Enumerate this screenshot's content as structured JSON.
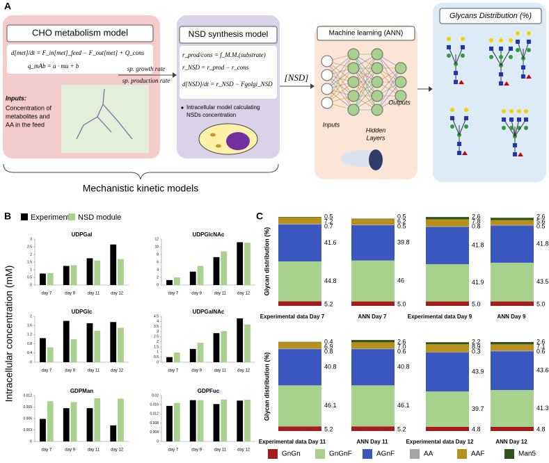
{
  "panel_a": {
    "label": "A",
    "cho": {
      "title": "CHO metabolism model",
      "equations": [
        "d[met]/dt = F_in[met]_feed − F_out[met] + Q_cons",
        "q_mAb = a · mu + b"
      ],
      "inputs_title": "Inputs:",
      "inputs_text": [
        "Concentration of",
        "metabolites and",
        "AA in the feed"
      ]
    },
    "arrow1": {
      "top": "sp. growth rate",
      "bottom": "sp. production rate"
    },
    "nsd": {
      "title": "NSD synthesis model",
      "equations": [
        "r_prod/cons = f_M.M.(substrate)",
        "r_NSD = r_prod − r_cons",
        "d[NSD]/dt = r_NSD − Fgolgi_NSD"
      ],
      "bullet": [
        "Intracellular model calculating",
        "NSDs concentration"
      ]
    },
    "arrow2": "[NSD]",
    "ann": {
      "title": "Machine learning (ANN)",
      "inputs": "Inputs",
      "hidden": [
        "Hidden",
        "Layers"
      ],
      "outputs": "Outputs"
    },
    "glycans": {
      "title": "Glycans Distribution (%)"
    },
    "brace_label": "Mechanistic kinetic models"
  },
  "panel_b_label": "B",
  "panel_c_label": "C",
  "chart_data": [
    {
      "type": "bar",
      "ylabel": "Intracellular concentration (mM)",
      "categories": [
        "day 7",
        "day 9",
        "day 11",
        "day 12"
      ],
      "legend": [
        {
          "name": "Experiment",
          "color": "#000000"
        },
        {
          "name": "NSD module",
          "color": "#a9d18e"
        }
      ],
      "panels": [
        {
          "title": "UDPGal",
          "ylim": [
            0,
            3
          ],
          "yticks": [
            0,
            0.5,
            1,
            1.5,
            2,
            2.5,
            3
          ],
          "series": [
            {
              "values": [
                0.75,
                1.25,
                1.75,
                2.65
              ]
            },
            {
              "values": [
                0.78,
                1.3,
                1.6,
                1.7
              ]
            }
          ]
        },
        {
          "title": "UDPGlcNAc",
          "ylim": [
            0,
            12
          ],
          "yticks": [
            0,
            2,
            4,
            6,
            8,
            10,
            12
          ],
          "series": [
            {
              "values": [
                1.3,
                3.5,
                7.3,
                11.2
              ]
            },
            {
              "values": [
                2,
                5,
                8.8,
                11.1
              ]
            }
          ]
        },
        {
          "title": "UDPGlc",
          "ylim": [
            0,
            2
          ],
          "yticks": [
            0,
            0.4,
            0.8,
            1.2,
            1.6,
            2
          ],
          "series": [
            {
              "values": [
                1.05,
                1.8,
                1.7,
                1.75
              ]
            },
            {
              "values": [
                0.65,
                1,
                1.37,
                1.5
              ]
            }
          ]
        },
        {
          "title": "UDPGalNAc",
          "ylim": [
            0,
            4.5
          ],
          "yticks": [
            0,
            0.5,
            1,
            1.5,
            2,
            2.5,
            3,
            3.5,
            4,
            4.5
          ],
          "series": [
            {
              "values": [
                0.5,
                1.3,
                2.85,
                4.3
              ]
            },
            {
              "values": [
                0.95,
                1.9,
                3.05,
                3.7
              ]
            }
          ]
        },
        {
          "title": "GDPMan",
          "ylim": [
            0,
            0.012
          ],
          "yticks": [
            0,
            0.003,
            0.006,
            0.009,
            0.012
          ],
          "series": [
            {
              "values": [
                0.0059,
                0.0087,
                0.0087,
                0.0042
              ]
            },
            {
              "values": [
                0.0105,
                0.0103,
                0.0113,
                0.0112
              ]
            }
          ]
        },
        {
          "title": "GDPFuc",
          "ylim": [
            0,
            0.02
          ],
          "yticks": [
            0,
            0.004,
            0.008,
            0.012,
            0.016,
            0.02
          ],
          "series": [
            {
              "values": [
                0.0155,
                0.018,
                0.0163,
                0.0178
              ]
            },
            {
              "values": [
                0.0168,
                0.018,
                0.0183,
                0.0182
              ]
            }
          ]
        }
      ]
    },
    {
      "type": "stacked_bar",
      "ylabel": "Glycan distribution (%)",
      "ylim": [
        0,
        100
      ],
      "categories": [
        "Experimental data Day 7",
        "ANN Day 7",
        "Experimental data Day 9",
        "ANN Day 9",
        "Experimental data Day 11",
        "ANN Day 11",
        "Experimental data Day 12",
        "ANN Day 12"
      ],
      "series": [
        {
          "name": "GnGn",
          "color": "#a61c1c",
          "values": [
            5.2,
            5,
            5,
            5,
            5.2,
            5.2,
            4.8,
            4.8
          ],
          "value_labels": [
            "5.2",
            "5.0",
            "5.0",
            "5.0",
            "5.2",
            "5.2",
            "4.8",
            "4.8"
          ]
        },
        {
          "name": "GnGnF",
          "color": "#a9d18e",
          "values": [
            44.8,
            46,
            41.9,
            43.5,
            46.1,
            46.1,
            39.7,
            41.3
          ],
          "value_labels": [
            "44.8",
            "46",
            "41.9",
            "43.5",
            "46.1",
            "46.1",
            "39.7",
            "41.3"
          ]
        },
        {
          "name": "AGnF",
          "color": "#3a58c0",
          "values": [
            41.6,
            39.8,
            41.8,
            41.8,
            40.8,
            40.8,
            43.9,
            43.6
          ],
          "value_labels": [
            "41.6",
            "39.8",
            "41.8",
            "41.8",
            "40.8",
            "40.8",
            "43.9",
            "43.6"
          ]
        },
        {
          "name": "AA",
          "color": "#a6a6a6",
          "values": [
            0.7,
            0.5,
            0.8,
            0.5,
            0.8,
            0.6,
            0.3,
            0.6
          ],
          "value_labels": [
            "0.7",
            "0.5",
            "0.8",
            "0.5",
            "0.8",
            "0.6",
            "0.3",
            "0.6"
          ]
        },
        {
          "name": "AAF",
          "color": "#b8901a",
          "values": [
            7.2,
            6.2,
            7.8,
            5.6,
            6.9,
            7,
            8.9,
            7.1
          ],
          "value_labels": [
            "7.2",
            "6.2",
            "7.8",
            "5.6",
            "6.9",
            "7.0",
            "8.9",
            "7.1"
          ]
        },
        {
          "name": "Man5",
          "color": "#2e5420",
          "values": [
            0.5,
            0.5,
            2.6,
            2.6,
            0.4,
            2.6,
            2.2,
            2.6
          ],
          "value_labels": [
            "0.5",
            "0.5",
            "2.6",
            "2.6",
            "0.4",
            "2.6",
            "2.2",
            "2.6"
          ]
        }
      ]
    }
  ]
}
